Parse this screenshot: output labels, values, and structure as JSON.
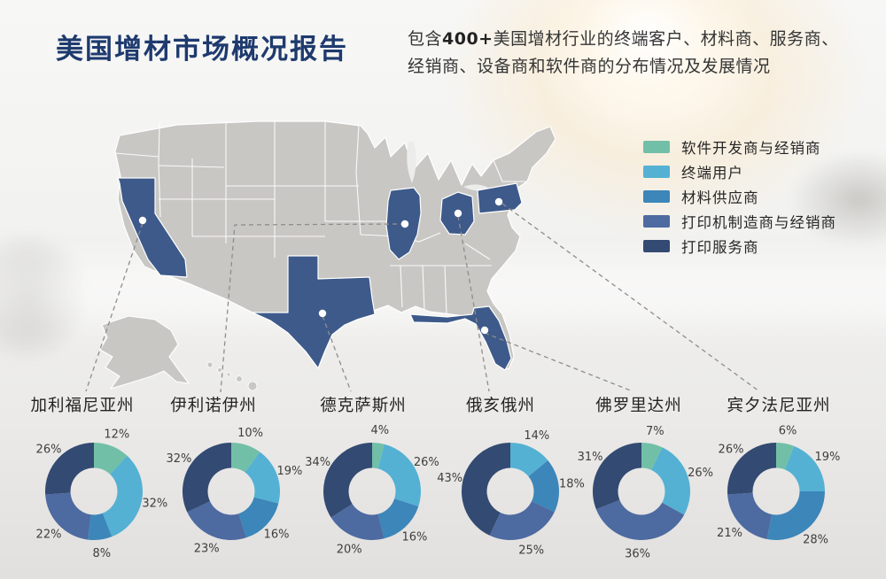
{
  "header": {
    "title": "美国增材市场概况报告",
    "subtitle": {
      "prefix": "包含",
      "highlight": "400+",
      "line1_rest": "美国增材行业的终端客户、材料商、服务商、",
      "line2": "经销商、设备商和软件商的分布情况及发展情况"
    }
  },
  "map": {
    "base_color": "#c9c7c4",
    "highlight_color": "#3d5a8a",
    "marker_color": "#ffffff",
    "highlighted_states": [
      "加利福尼亚州",
      "伊利诺伊州",
      "德克萨斯州",
      "俄亥俄州",
      "佛罗里达州",
      "宾夕法尼亚州"
    ]
  },
  "chart_data": {
    "type": "pie",
    "subtype": "donut-small-multiples",
    "title": "美国增材市场概况报告",
    "legend_position": "right-of-map",
    "legend": [
      {
        "label": "软件开发商与经销商",
        "color": "#72bfa8"
      },
      {
        "label": "终端用户",
        "color": "#54b1d3"
      },
      {
        "label": "材料供应商",
        "color": "#3c86ba"
      },
      {
        "label": "打印机制造商与经销商",
        "color": "#4d6aa1"
      },
      {
        "label": "打印服务商",
        "color": "#334a72"
      }
    ],
    "value_unit": "%",
    "charts": [
      {
        "state": "加利福尼亚州",
        "values": [
          12,
          32,
          8,
          22,
          26
        ]
      },
      {
        "state": "伊利诺伊州",
        "values": [
          10,
          19,
          16,
          23,
          32
        ]
      },
      {
        "state": "德克萨斯州",
        "values": [
          4,
          26,
          16,
          20,
          34
        ]
      },
      {
        "state": "俄亥俄州",
        "values": [
          0,
          14,
          18,
          25,
          43
        ]
      },
      {
        "state": "佛罗里达州",
        "values": [
          7,
          26,
          0,
          36,
          31
        ]
      },
      {
        "state": "宾夕法尼亚州",
        "values": [
          6,
          19,
          28,
          21,
          26
        ]
      }
    ]
  }
}
